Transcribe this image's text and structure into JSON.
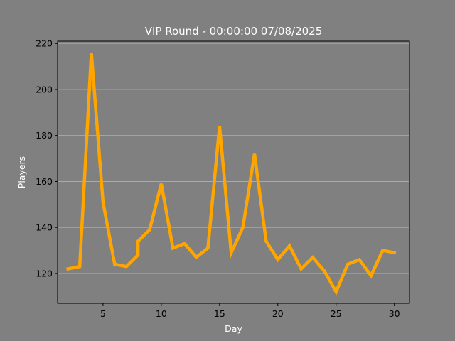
{
  "chart_data": {
    "type": "line",
    "title": "VIP Round - 00:00:00 07/08/2025",
    "xlabel": "Day",
    "ylabel": "Players",
    "xlim": [
      1.1,
      31.3
    ],
    "ylim": [
      107,
      221
    ],
    "xticks": [
      5,
      10,
      15,
      20,
      25,
      30
    ],
    "yticks": [
      120,
      140,
      160,
      180,
      200,
      220
    ],
    "grid": "horizontal",
    "series": [
      {
        "color": "#ffa500",
        "points": [
          [
            2,
            122
          ],
          [
            3,
            123
          ],
          [
            4,
            216
          ],
          [
            5,
            151
          ],
          [
            6,
            124
          ],
          [
            7,
            123
          ],
          [
            8,
            128
          ],
          [
            8,
            134
          ],
          [
            9,
            139
          ],
          [
            10,
            159
          ],
          [
            11,
            131
          ],
          [
            12,
            133
          ],
          [
            13,
            127
          ],
          [
            14,
            131
          ],
          [
            15,
            184
          ],
          [
            16,
            129
          ],
          [
            17,
            140
          ],
          [
            18,
            172
          ],
          [
            19,
            134
          ],
          [
            20,
            126
          ],
          [
            21,
            132
          ],
          [
            22,
            122
          ],
          [
            23,
            127
          ],
          [
            24,
            121
          ],
          [
            25,
            112
          ],
          [
            26,
            124
          ],
          [
            27,
            126
          ],
          [
            28,
            119
          ],
          [
            29,
            130
          ],
          [
            30,
            129
          ]
        ]
      }
    ]
  },
  "colors": {
    "figure_background": "#808080",
    "axes_background": "#808080",
    "grid": "#b0b0b0",
    "text": "#ffffff"
  }
}
